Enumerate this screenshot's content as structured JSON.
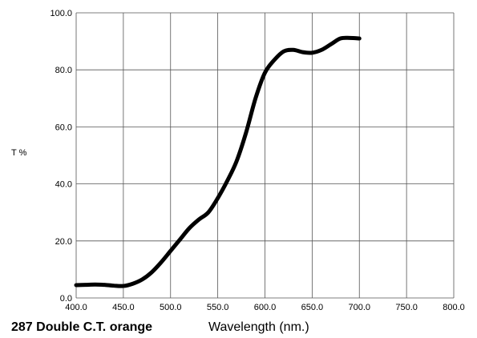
{
  "chart_data": {
    "type": "line",
    "title": "287 Double C.T. orange",
    "xlabel": "Wavelength (nm.)",
    "ylabel": "T %",
    "xlim": [
      400,
      800
    ],
    "ylim": [
      0,
      100
    ],
    "grid": true,
    "x_ticks": [
      "400.0",
      "450.0",
      "500.0",
      "550.0",
      "600.0",
      "650.0",
      "700.0",
      "750.0",
      "800.0"
    ],
    "y_ticks": [
      "0.0",
      "20.0",
      "40.0",
      "60.0",
      "80.0",
      "100.0"
    ],
    "series": [
      {
        "color": "#000000",
        "x": [
          400,
          410,
          420,
          430,
          440,
          450,
          460,
          470,
          480,
          490,
          500,
          510,
          520,
          530,
          540,
          550,
          560,
          570,
          580,
          590,
          600,
          610,
          620,
          630,
          640,
          650,
          660,
          670,
          680,
          690,
          700
        ],
        "y": [
          4.5,
          4.6,
          4.7,
          4.6,
          4.3,
          4.2,
          5,
          6.5,
          9,
          12.5,
          16.5,
          20.5,
          24.5,
          27.5,
          30,
          35,
          41,
          48,
          58,
          70,
          79,
          83.5,
          86.5,
          87,
          86.2,
          86,
          87,
          89,
          91,
          91.2,
          91
        ]
      }
    ]
  }
}
